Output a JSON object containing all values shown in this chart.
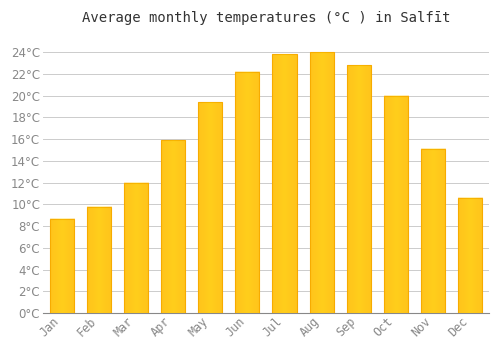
{
  "title": "Average monthly temperatures (°C ) in Salfīt",
  "months": [
    "Jan",
    "Feb",
    "Mar",
    "Apr",
    "May",
    "Jun",
    "Jul",
    "Aug",
    "Sep",
    "Oct",
    "Nov",
    "Dec"
  ],
  "values": [
    8.7,
    9.8,
    12.0,
    15.9,
    19.4,
    22.2,
    23.8,
    24.0,
    22.8,
    20.0,
    15.1,
    10.6
  ],
  "bar_color_center": "#FFC825",
  "bar_color_edge": "#F5A800",
  "background_color": "#FFFFFF",
  "plot_bg_color": "#FFFFFF",
  "grid_color": "#CCCCCC",
  "text_color": "#888888",
  "title_color": "#333333",
  "ylim": [
    0,
    26
  ],
  "yticks": [
    0,
    2,
    4,
    6,
    8,
    10,
    12,
    14,
    16,
    18,
    20,
    22,
    24
  ],
  "title_fontsize": 10,
  "tick_fontsize": 8.5,
  "bar_width": 0.65
}
